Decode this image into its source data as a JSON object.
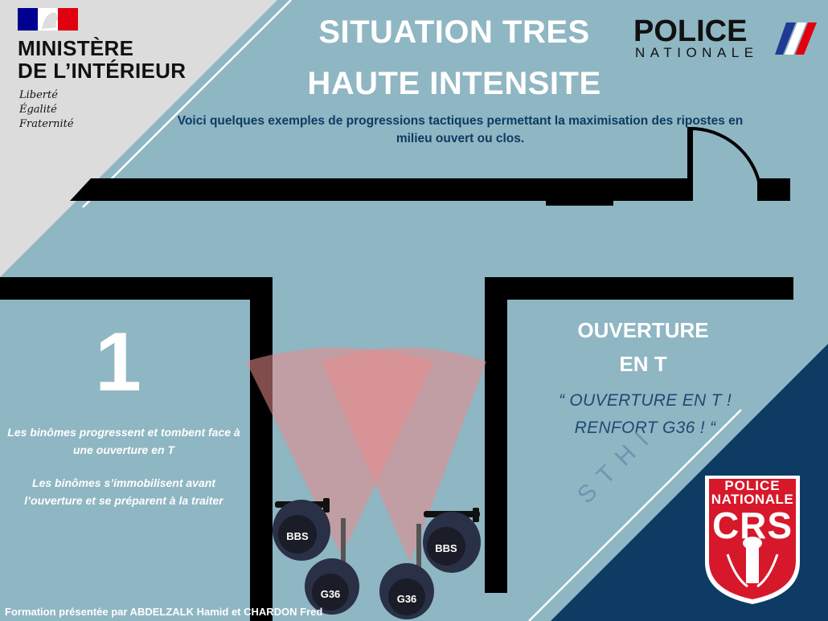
{
  "header": {
    "title_line1": "SITUATION TRES",
    "title_line2": "HAUTE INTENSITE",
    "intro": "Voici quelques exemples de progressions tactiques permettant la maximisation des ripostes en milieu ouvert ou clos."
  },
  "ministry": {
    "name_line1": "MINISTÈRE",
    "name_line2": "DE L’INTÉRIEUR",
    "motto": [
      "Liberté",
      "Égalité",
      "Fraternité"
    ]
  },
  "police_logo": {
    "title": "POLICE",
    "subtitle": "NATIONALE"
  },
  "step": {
    "number": "1",
    "text1": "Les binômes progressent et tombent face à une ouverture en T",
    "text2": "Les binômes s’immobilisent avant l’ouverture et se préparent à la traiter"
  },
  "section": {
    "title_line1": "OUVERTURE",
    "title_line2": "EN T",
    "quote_line1": "“ OUVERTURE EN T !",
    "quote_line2": "RENFORT G36 ! “"
  },
  "watermark": "STHI",
  "officers": [
    {
      "label": "BBS"
    },
    {
      "label": "G36"
    },
    {
      "label": "G36"
    },
    {
      "label": "BBS"
    }
  ],
  "crs_badge": {
    "line1": "POLICE",
    "line2": "NATIONALE",
    "line3": "CRS"
  },
  "footer": {
    "credit": "Formation présentée par ABDELZALK Hamid et CHARDON Fred"
  },
  "colors": {
    "background": "#8fb6c3",
    "light_corner": "#dcdcdc",
    "dark_corner": "#0d3b63",
    "walls": "#000000",
    "cone": "#e98a8a",
    "crs_red": "#d7182a",
    "flag_blue": "#000091",
    "flag_red": "#e1000f"
  }
}
